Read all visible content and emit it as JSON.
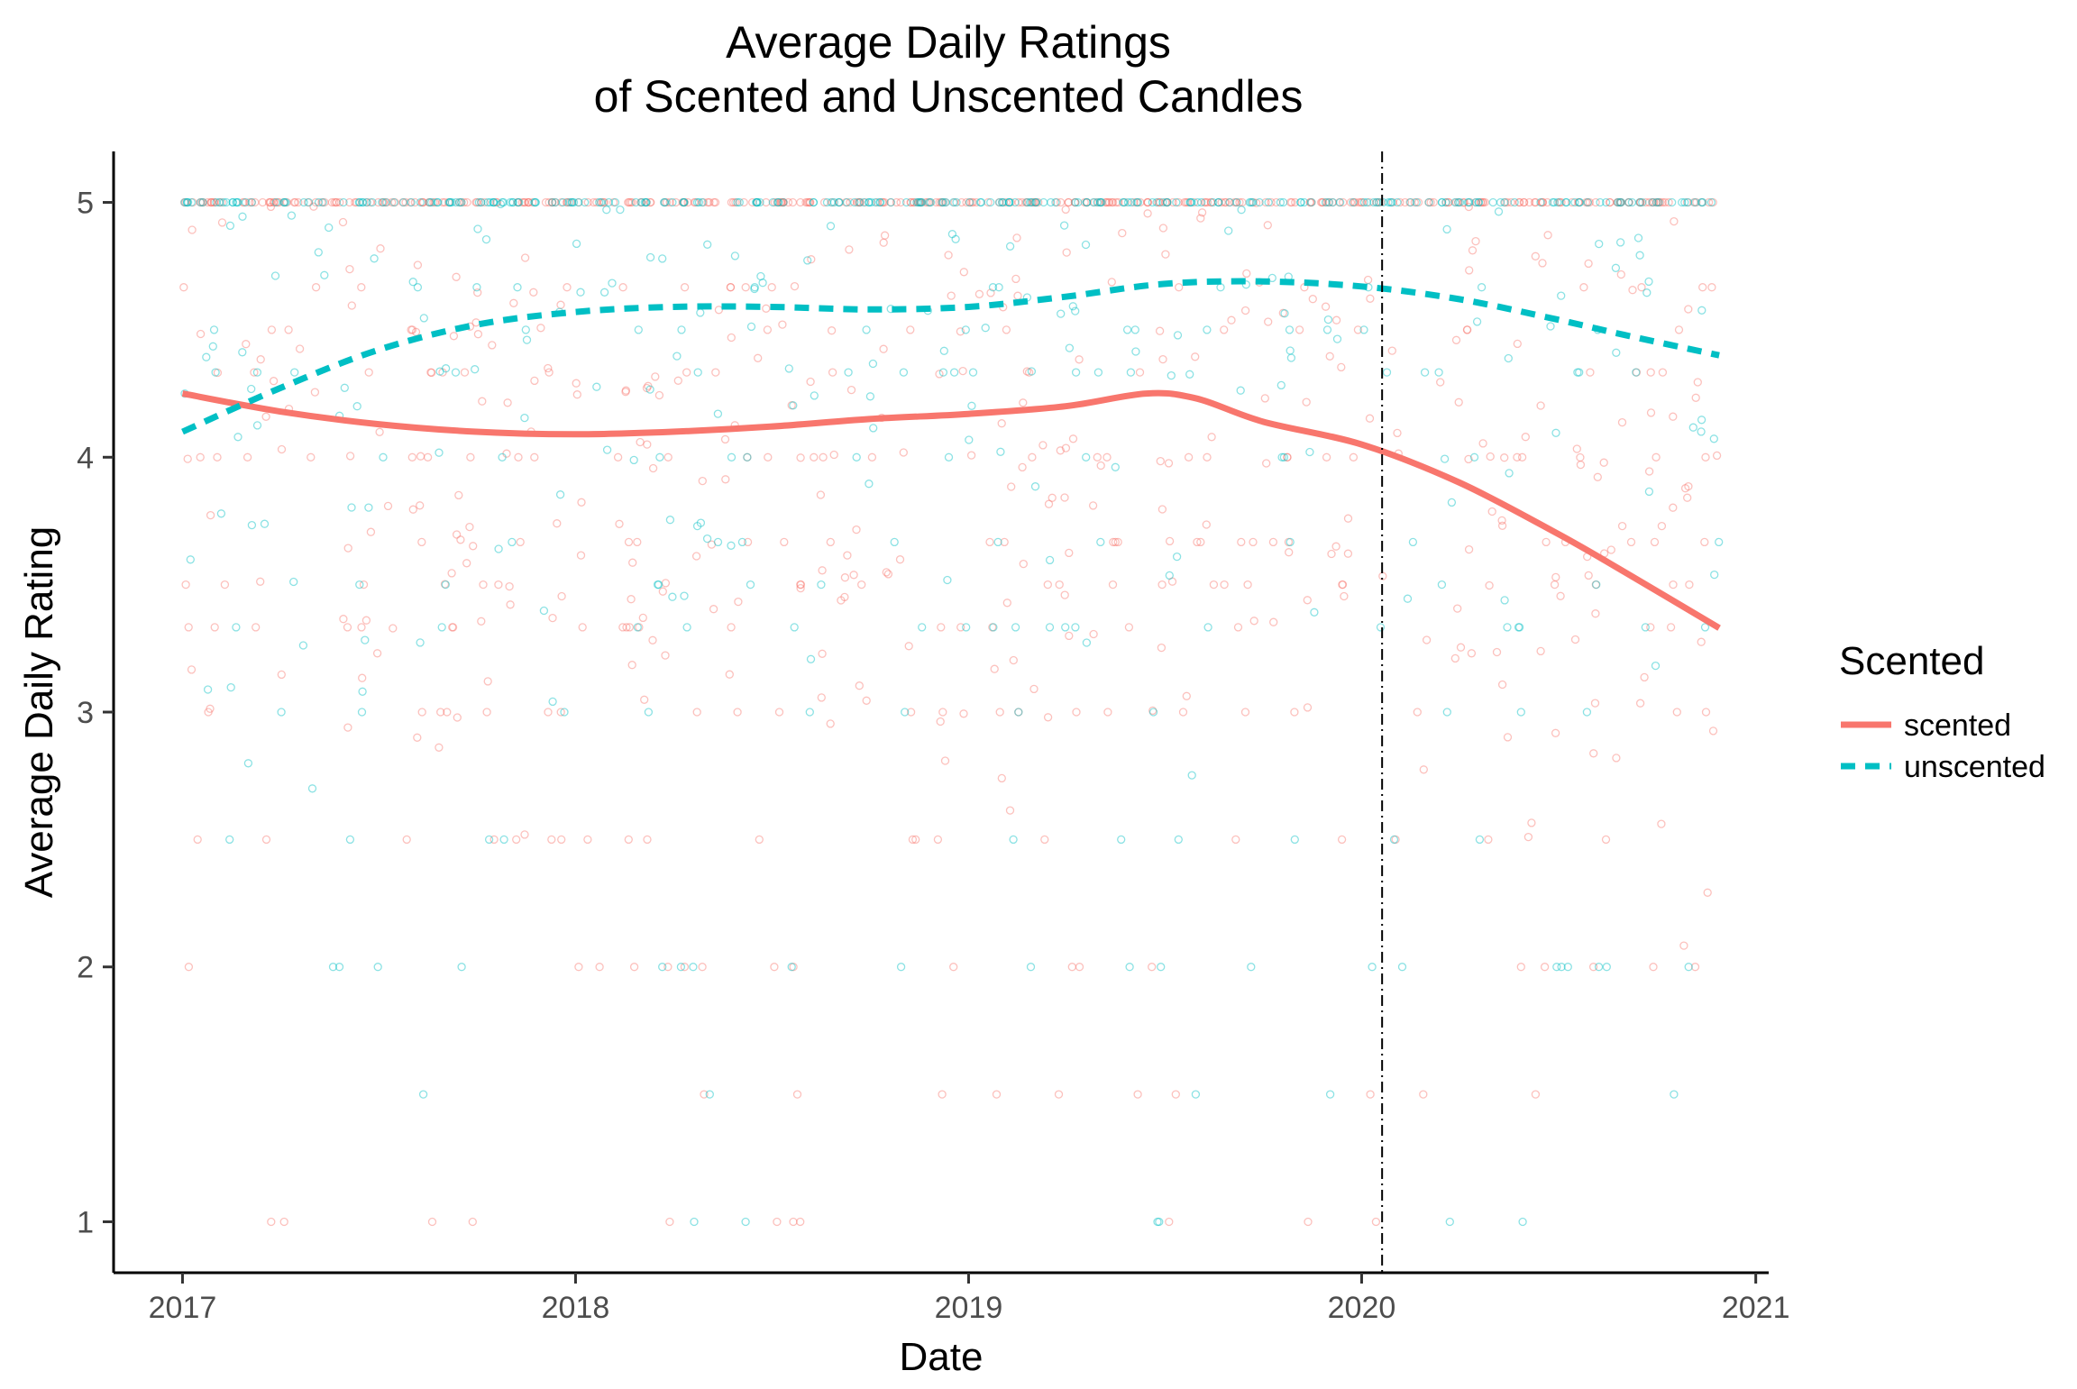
{
  "chart_data": {
    "type": "scatter",
    "title": "Average Daily Ratings\nof Scented and Unscented Candles",
    "xlabel": "Date",
    "ylabel": "Average Daily Rating",
    "xlim": [
      "2016-10-29",
      "2021-01-13"
    ],
    "ylim": [
      0.8,
      5.2
    ],
    "x_ticks": [
      "2017",
      "2018",
      "2019",
      "2020",
      "2021"
    ],
    "y_ticks": [
      "1",
      "2",
      "3",
      "4",
      "5"
    ],
    "grid": false,
    "legend": {
      "title": "Scented",
      "position": "right",
      "entries": [
        "scented",
        "unscented"
      ]
    },
    "annotations": [
      {
        "type": "vline",
        "x": "2020-01-20",
        "style": "dotdash",
        "color": "#000000"
      }
    ],
    "series": [
      {
        "name": "scented",
        "color": "#F8766D",
        "line_style": "solid",
        "smooth": {
          "x": [
            "2017-01-01",
            "2017-04-01",
            "2017-07-01",
            "2017-10-01",
            "2018-01-01",
            "2018-04-01",
            "2018-07-01",
            "2018-10-01",
            "2019-01-01",
            "2019-04-01",
            "2019-06-15",
            "2019-08-01",
            "2019-10-01",
            "2020-01-01",
            "2020-04-01",
            "2020-07-01",
            "2020-09-01",
            "2020-11-28"
          ],
          "y": [
            4.25,
            4.18,
            4.13,
            4.1,
            4.09,
            4.1,
            4.12,
            4.15,
            4.17,
            4.2,
            4.25,
            4.23,
            4.14,
            4.05,
            3.9,
            3.7,
            3.55,
            3.33
          ]
        }
      },
      {
        "name": "unscented",
        "color": "#00BFC4",
        "line_style": "dashed",
        "smooth": {
          "x": [
            "2017-01-01",
            "2017-04-01",
            "2017-07-01",
            "2017-10-01",
            "2018-01-01",
            "2018-04-01",
            "2018-07-01",
            "2018-10-01",
            "2019-01-01",
            "2019-04-01",
            "2019-07-01",
            "2019-10-01",
            "2020-01-01",
            "2020-04-01",
            "2020-07-01",
            "2020-09-01",
            "2020-11-28"
          ],
          "y": [
            4.1,
            4.27,
            4.42,
            4.52,
            4.57,
            4.59,
            4.59,
            4.58,
            4.59,
            4.63,
            4.68,
            4.69,
            4.67,
            4.62,
            4.54,
            4.48,
            4.4
          ]
        }
      }
    ]
  }
}
